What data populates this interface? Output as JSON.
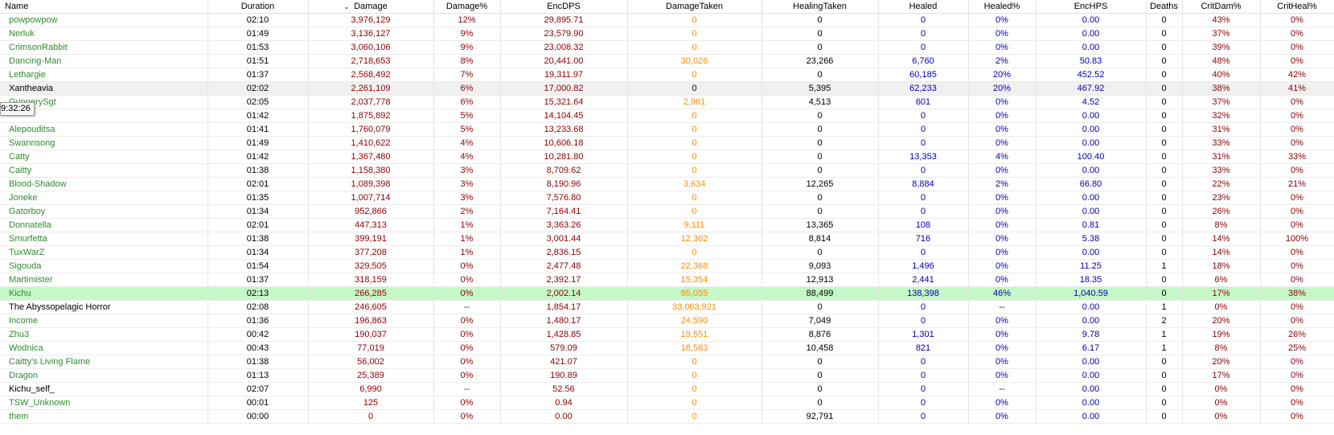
{
  "columns": [
    "Name",
    "Duration",
    "Damage",
    "Damage%",
    "EncDPS",
    "DamageTaken",
    "HealingTaken",
    "Healed",
    "Healed%",
    "EncHPS",
    "Deaths",
    "CritDam%",
    "CritHeal%"
  ],
  "sort_indicator": "⌄",
  "tooltip": "9:32:26",
  "rows": [
    {
      "name": "powpowpow",
      "duration": "02:10",
      "damage": "3,976,129",
      "damage_pct": "12%",
      "encdps": "29,895.71",
      "damage_taken": "0",
      "healing_taken": "0",
      "healed": "0",
      "healed_pct": "0%",
      "enchps": "0.00",
      "deaths": "0",
      "critdam": "43%",
      "critheal": "0%"
    },
    {
      "name": "Nerluk",
      "duration": "01:49",
      "damage": "3,136,127",
      "damage_pct": "9%",
      "encdps": "23,579.90",
      "damage_taken": "0",
      "healing_taken": "0",
      "healed": "0",
      "healed_pct": "0%",
      "enchps": "0.00",
      "deaths": "0",
      "critdam": "37%",
      "critheal": "0%"
    },
    {
      "name": "CrimsonRabbit",
      "duration": "01:53",
      "damage": "3,060,106",
      "damage_pct": "9%",
      "encdps": "23,008.32",
      "damage_taken": "0",
      "healing_taken": "0",
      "healed": "0",
      "healed_pct": "0%",
      "enchps": "0.00",
      "deaths": "0",
      "critdam": "39%",
      "critheal": "0%"
    },
    {
      "name": "Dancing-Man",
      "duration": "01:51",
      "damage": "2,718,653",
      "damage_pct": "8%",
      "encdps": "20,441.00",
      "damage_taken": "30,026",
      "healing_taken": "23,266",
      "healed": "6,760",
      "healed_pct": "2%",
      "enchps": "50.83",
      "deaths": "0",
      "critdam": "48%",
      "critheal": "0%"
    },
    {
      "name": "Lethargie",
      "duration": "01:37",
      "damage": "2,568,492",
      "damage_pct": "7%",
      "encdps": "19,311.97",
      "damage_taken": "0",
      "healing_taken": "0",
      "healed": "60,185",
      "healed_pct": "20%",
      "enchps": "452.52",
      "deaths": "0",
      "critdam": "40%",
      "critheal": "42%"
    },
    {
      "name": "Xantheavia",
      "duration": "02:02",
      "damage": "2,261,109",
      "damage_pct": "6%",
      "encdps": "17,000.82",
      "damage_taken": "0",
      "healing_taken": "5,395",
      "healed": "62,233",
      "healed_pct": "20%",
      "enchps": "467.92",
      "deaths": "0",
      "critdam": "38%",
      "critheal": "41%"
    },
    {
      "name": "GunnerySgt",
      "duration": "02:05",
      "damage": "2,037,778",
      "damage_pct": "6%",
      "encdps": "15,321.64",
      "damage_taken": "2,961",
      "healing_taken": "4,513",
      "healed": "601",
      "healed_pct": "0%",
      "enchps": "4.52",
      "deaths": "0",
      "critdam": "37%",
      "critheal": "0%"
    },
    {
      "name": "",
      "duration": "01:42",
      "damage": "1,875,892",
      "damage_pct": "5%",
      "encdps": "14,104.45",
      "damage_taken": "0",
      "healing_taken": "0",
      "healed": "0",
      "healed_pct": "0%",
      "enchps": "0.00",
      "deaths": "0",
      "critdam": "32%",
      "critheal": "0%"
    },
    {
      "name": "Alepouditsa",
      "duration": "01:41",
      "damage": "1,760,079",
      "damage_pct": "5%",
      "encdps": "13,233.68",
      "damage_taken": "0",
      "healing_taken": "0",
      "healed": "0",
      "healed_pct": "0%",
      "enchps": "0.00",
      "deaths": "0",
      "critdam": "31%",
      "critheal": "0%"
    },
    {
      "name": "Swannsong",
      "duration": "01:49",
      "damage": "1,410,622",
      "damage_pct": "4%",
      "encdps": "10,606.18",
      "damage_taken": "0",
      "healing_taken": "0",
      "healed": "0",
      "healed_pct": "0%",
      "enchps": "0.00",
      "deaths": "0",
      "critdam": "33%",
      "critheal": "0%"
    },
    {
      "name": "Catty",
      "duration": "01:42",
      "damage": "1,367,480",
      "damage_pct": "4%",
      "encdps": "10,281.80",
      "damage_taken": "0",
      "healing_taken": "0",
      "healed": "13,353",
      "healed_pct": "4%",
      "enchps": "100.40",
      "deaths": "0",
      "critdam": "31%",
      "critheal": "33%"
    },
    {
      "name": "Caitty",
      "duration": "01:38",
      "damage": "1,158,380",
      "damage_pct": "3%",
      "encdps": "8,709.62",
      "damage_taken": "0",
      "healing_taken": "0",
      "healed": "0",
      "healed_pct": "0%",
      "enchps": "0.00",
      "deaths": "0",
      "critdam": "33%",
      "critheal": "0%"
    },
    {
      "name": "Blood-Shadow",
      "duration": "02:01",
      "damage": "1,089,398",
      "damage_pct": "3%",
      "encdps": "8,190.96",
      "damage_taken": "3,634",
      "healing_taken": "12,265",
      "healed": "8,884",
      "healed_pct": "2%",
      "enchps": "66.80",
      "deaths": "0",
      "critdam": "22%",
      "critheal": "21%"
    },
    {
      "name": "Joneke",
      "duration": "01:35",
      "damage": "1,007,714",
      "damage_pct": "3%",
      "encdps": "7,576.80",
      "damage_taken": "0",
      "healing_taken": "0",
      "healed": "0",
      "healed_pct": "0%",
      "enchps": "0.00",
      "deaths": "0",
      "critdam": "23%",
      "critheal": "0%"
    },
    {
      "name": "Gatorboy",
      "duration": "01:34",
      "damage": "952,866",
      "damage_pct": "2%",
      "encdps": "7,164.41",
      "damage_taken": "0",
      "healing_taken": "0",
      "healed": "0",
      "healed_pct": "0%",
      "enchps": "0.00",
      "deaths": "0",
      "critdam": "26%",
      "critheal": "0%"
    },
    {
      "name": "Donnatella",
      "duration": "02:01",
      "damage": "447,313",
      "damage_pct": "1%",
      "encdps": "3,363.26",
      "damage_taken": "9,111",
      "healing_taken": "13,365",
      "healed": "108",
      "healed_pct": "0%",
      "enchps": "0.81",
      "deaths": "0",
      "critdam": "8%",
      "critheal": "0%"
    },
    {
      "name": "Smurfetta",
      "duration": "01:38",
      "damage": "399,191",
      "damage_pct": "1%",
      "encdps": "3,001.44",
      "damage_taken": "12,362",
      "healing_taken": "8,814",
      "healed": "716",
      "healed_pct": "0%",
      "enchps": "5.38",
      "deaths": "0",
      "critdam": "14%",
      "critheal": "100%"
    },
    {
      "name": "TuxWarZ",
      "duration": "01:34",
      "damage": "377,208",
      "damage_pct": "1%",
      "encdps": "2,836.15",
      "damage_taken": "0",
      "healing_taken": "0",
      "healed": "0",
      "healed_pct": "0%",
      "enchps": "0.00",
      "deaths": "0",
      "critdam": "14%",
      "critheal": "0%"
    },
    {
      "name": "Sigouda",
      "duration": "01:54",
      "damage": "329,505",
      "damage_pct": "0%",
      "encdps": "2,477.48",
      "damage_taken": "22,368",
      "healing_taken": "9,093",
      "healed": "1,496",
      "healed_pct": "0%",
      "enchps": "11.25",
      "deaths": "1",
      "critdam": "18%",
      "critheal": "0%"
    },
    {
      "name": "Martimister",
      "duration": "01:37",
      "damage": "318,159",
      "damage_pct": "0%",
      "encdps": "2,392.17",
      "damage_taken": "15,354",
      "healing_taken": "12,913",
      "healed": "2,441",
      "healed_pct": "0%",
      "enchps": "18.35",
      "deaths": "0",
      "critdam": "6%",
      "critheal": "0%"
    },
    {
      "name": "Kichu",
      "duration": "02:13",
      "damage": "266,285",
      "damage_pct": "0%",
      "encdps": "2,002.14",
      "damage_taken": "95,055",
      "healing_taken": "88,499",
      "healed": "138,398",
      "healed_pct": "46%",
      "enchps": "1,040.59",
      "deaths": "0",
      "critdam": "17%",
      "critheal": "38%"
    },
    {
      "name": "The Abyssopelagic Horror",
      "duration": "02:08",
      "damage": "246,605",
      "damage_pct": "--",
      "encdps": "1,854.17",
      "damage_taken": "33,063,921",
      "healing_taken": "0",
      "healed": "0",
      "healed_pct": "--",
      "enchps": "0.00",
      "deaths": "1",
      "critdam": "0%",
      "critheal": "0%"
    },
    {
      "name": "Income",
      "duration": "01:36",
      "damage": "196,863",
      "damage_pct": "0%",
      "encdps": "1,480.17",
      "damage_taken": "24,590",
      "healing_taken": "7,049",
      "healed": "0",
      "healed_pct": "0%",
      "enchps": "0.00",
      "deaths": "2",
      "critdam": "20%",
      "critheal": "0%"
    },
    {
      "name": "Zhu3",
      "duration": "00:42",
      "damage": "190,037",
      "damage_pct": "0%",
      "encdps": "1,428.85",
      "damage_taken": "19,551",
      "healing_taken": "8,876",
      "healed": "1,301",
      "healed_pct": "0%",
      "enchps": "9.78",
      "deaths": "1",
      "critdam": "19%",
      "critheal": "26%"
    },
    {
      "name": "Wodnica",
      "duration": "00:43",
      "damage": "77,019",
      "damage_pct": "0%",
      "encdps": "579.09",
      "damage_taken": "18,583",
      "healing_taken": "10,458",
      "healed": "821",
      "healed_pct": "0%",
      "enchps": "6.17",
      "deaths": "1",
      "critdam": "8%",
      "critheal": "25%"
    },
    {
      "name": "Caitty's Living Flame",
      "duration": "01:38",
      "damage": "56,002",
      "damage_pct": "0%",
      "encdps": "421.07",
      "damage_taken": "0",
      "healing_taken": "0",
      "healed": "0",
      "healed_pct": "0%",
      "enchps": "0.00",
      "deaths": "0",
      "critdam": "20%",
      "critheal": "0%"
    },
    {
      "name": "Dragon",
      "duration": "01:13",
      "damage": "25,389",
      "damage_pct": "0%",
      "encdps": "190.89",
      "damage_taken": "0",
      "healing_taken": "0",
      "healed": "0",
      "healed_pct": "0%",
      "enchps": "0.00",
      "deaths": "0",
      "critdam": "17%",
      "critheal": "0%"
    },
    {
      "name": "Kichu_self_",
      "duration": "02:07",
      "damage": "6,990",
      "damage_pct": "--",
      "encdps": "52.56",
      "damage_taken": "0",
      "healing_taken": "0",
      "healed": "0",
      "healed_pct": "--",
      "enchps": "0.00",
      "deaths": "0",
      "critdam": "0%",
      "critheal": "0%"
    },
    {
      "name": "TSW_Unknown",
      "duration": "00:01",
      "damage": "125",
      "damage_pct": "0%",
      "encdps": "0.94",
      "damage_taken": "0",
      "healing_taken": "0",
      "healed": "0",
      "healed_pct": "0%",
      "enchps": "0.00",
      "deaths": "0",
      "critdam": "0%",
      "critheal": "0%"
    },
    {
      "name": "them",
      "duration": "00:00",
      "damage": "0",
      "damage_pct": "0%",
      "encdps": "0.00",
      "damage_taken": "0",
      "healing_taken": "92,791",
      "healed": "0",
      "healed_pct": "0%",
      "enchps": "0.00",
      "deaths": "0",
      "critdam": "0%",
      "critheal": "0%"
    }
  ],
  "colors": {
    "name_player": "#2e8b2e",
    "name_other": "#000000",
    "damage": "#8b0000",
    "damage_taken": "#ff8c00",
    "healed": "#0000b0",
    "selected_row": "#f0f0f0",
    "highlight_row": "#c6f7c6"
  }
}
